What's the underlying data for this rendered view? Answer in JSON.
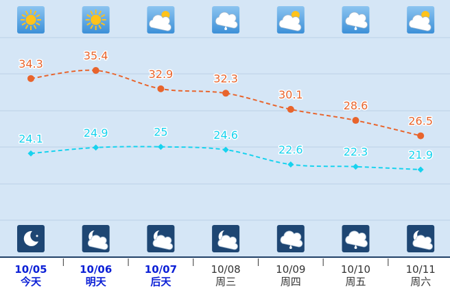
{
  "chart_data": {
    "type": "line",
    "categories": [
      "10/05",
      "10/06",
      "10/07",
      "10/08",
      "10/09",
      "10/10",
      "10/11"
    ],
    "weekdays": [
      "今天",
      "明天",
      "后天",
      "周三",
      "周四",
      "周五",
      "周六"
    ],
    "series": [
      {
        "color": "#e8642c",
        "values": [
          34.3,
          35.4,
          32.9,
          32.3,
          30.1,
          28.6,
          26.5
        ]
      },
      {
        "color": "#16d2ee",
        "values": [
          24.1,
          24.9,
          25,
          24.6,
          22.6,
          22.3,
          21.9
        ]
      }
    ]
  }
}
